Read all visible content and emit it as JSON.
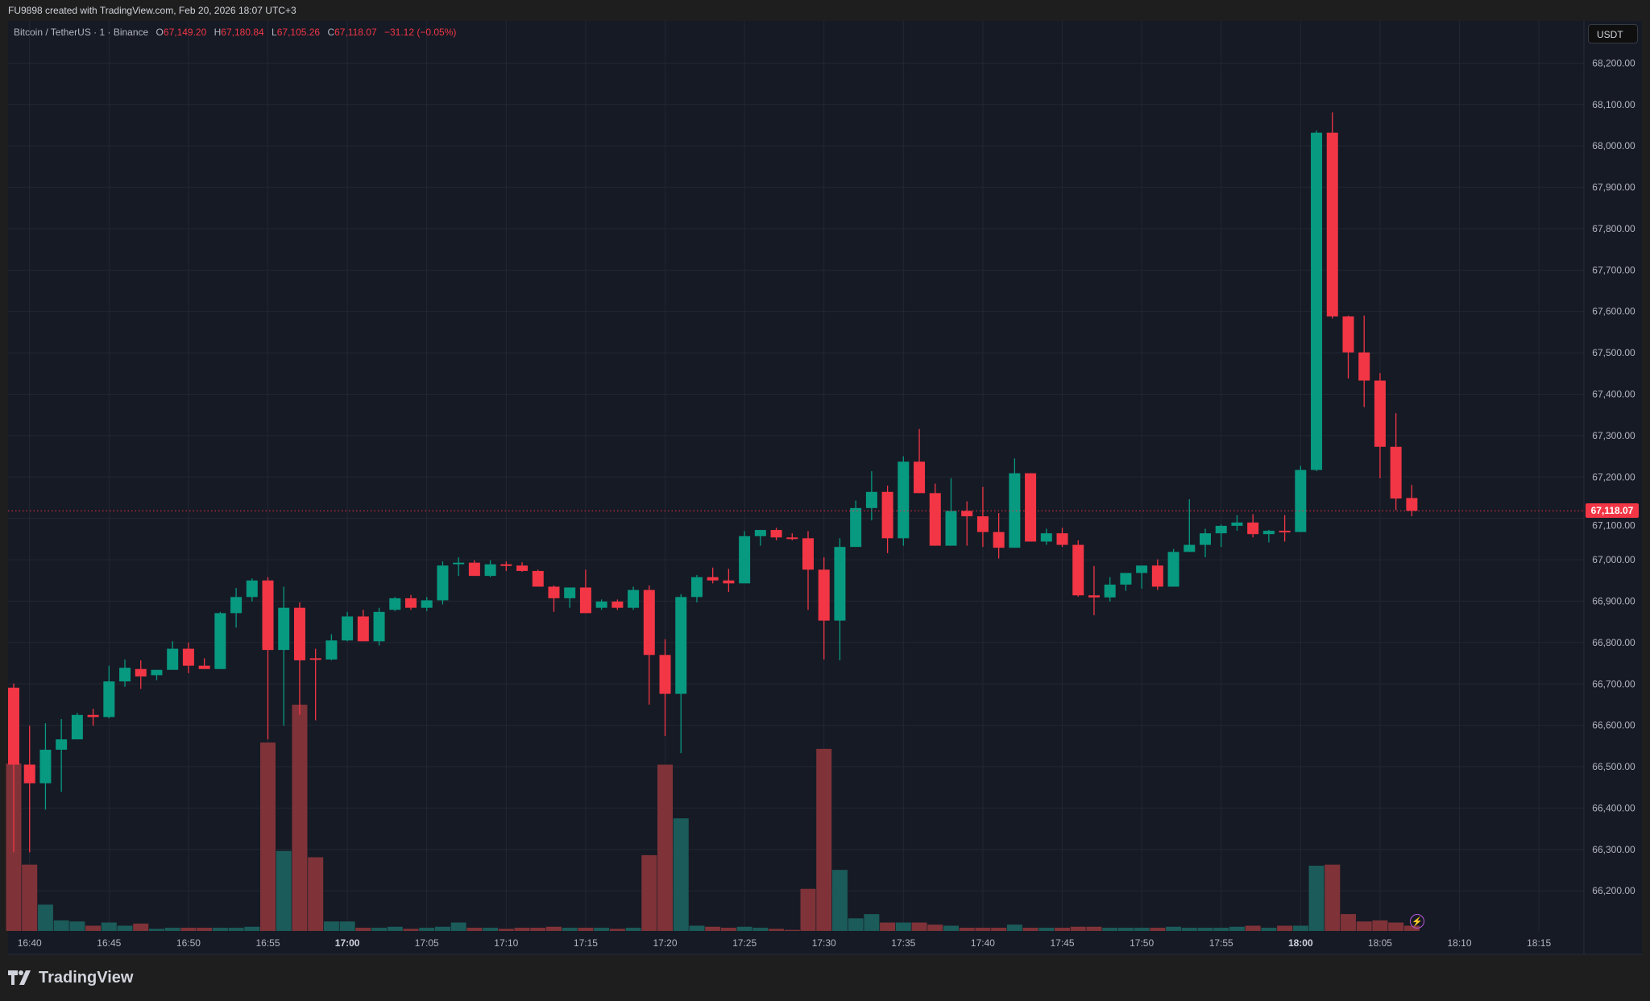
{
  "header": {
    "text": "FU9898 created with TradingView.com, Feb 20, 2026 18:07 UTC+3"
  },
  "legend": {
    "symbol": "Bitcoin / TetherUS · 1 · Binance",
    "o_label": "O",
    "o": "67,149.20",
    "h_label": "H",
    "h": "67,180.84",
    "l_label": "L",
    "l": "67,105.26",
    "c_label": "C",
    "c": "67,118.07",
    "change": "−31.12 (−0.05%)"
  },
  "currency_button": "USDT",
  "last_price_label": "67,118.07",
  "footer": {
    "brand": "TradingView"
  },
  "colors": {
    "up": "#089981",
    "down": "#f23645",
    "vol_up": "#1b5b59",
    "vol_down": "#7f3338",
    "background": "#161a25",
    "grid": "#232733"
  },
  "icons": {
    "alert": "lightning-icon",
    "logo": "tradingview-logo-icon"
  },
  "chart_data": {
    "type": "candlestick",
    "interval": "1 minute",
    "ylim": [
      66150,
      68250
    ],
    "yticks": [
      68200,
      68100,
      68000,
      67900,
      67800,
      67700,
      67600,
      67500,
      67400,
      67300,
      67200,
      67100,
      67000,
      66900,
      66800,
      66700,
      66600,
      66500,
      66400,
      66300,
      66200
    ],
    "ytick_labels": [
      "68,200.00",
      "68,100.00",
      "68,000.00",
      "67,900.00",
      "67,800.00",
      "67,700.00",
      "67,600.00",
      "67,500.00",
      "67,400.00",
      "67,300.00",
      "67,200.00",
      "67,100.00",
      "67,000.00",
      "66,900.00",
      "66,800.00",
      "66,700.00",
      "66,600.00",
      "66,500.00",
      "66,400.00",
      "66,300.00",
      "66,200.00"
    ],
    "xtick_labels": [
      "16:40",
      "16:45",
      "16:50",
      "16:55",
      "17:00",
      "17:05",
      "17:10",
      "17:15",
      "17:20",
      "17:25",
      "17:30",
      "17:35",
      "17:40",
      "17:45",
      "17:50",
      "17:55",
      "18:00",
      "18:05",
      "18:10",
      "18:15"
    ],
    "xtick_bold": [
      "17:00",
      "18:00"
    ],
    "first_candle_time": "16:39",
    "last_price": 67118.07,
    "grid": true,
    "volume_note": "relative volume, no axis shown",
    "candles_ohlcv": [
      [
        66691,
        66701,
        66293,
        66505,
        159
      ],
      [
        66505,
        66599,
        66293,
        66460,
        63
      ],
      [
        66460,
        66605,
        66396,
        66541,
        25
      ],
      [
        66541,
        66615,
        66439,
        66566,
        10
      ],
      [
        66566,
        66630,
        66566,
        66625,
        9
      ],
      [
        66625,
        66640,
        66599,
        66620,
        5
      ],
      [
        66620,
        66744,
        66617,
        66706,
        8
      ],
      [
        66706,
        66759,
        66693,
        66739,
        5
      ],
      [
        66736,
        66757,
        66688,
        66718,
        7
      ],
      [
        66721,
        66734,
        66709,
        66734,
        2
      ],
      [
        66734,
        66803,
        66734,
        66785,
        3
      ],
      [
        66785,
        66800,
        66726,
        66744,
        3
      ],
      [
        66744,
        66762,
        66736,
        66736,
        3
      ],
      [
        66736,
        66874,
        66736,
        66871,
        3
      ],
      [
        66871,
        66932,
        66836,
        66910,
        3
      ],
      [
        66910,
        66955,
        66899,
        66950,
        4
      ],
      [
        66950,
        66958,
        66566,
        66782,
        179
      ],
      [
        66782,
        66935,
        66599,
        66884,
        76
      ],
      [
        66884,
        66897,
        66625,
        66757,
        215
      ],
      [
        66762,
        66785,
        66612,
        66759,
        70
      ],
      [
        66759,
        66820,
        66757,
        66805,
        9
      ],
      [
        66805,
        66874,
        66803,
        66863,
        9
      ],
      [
        66863,
        66879,
        66803,
        66803,
        3
      ],
      [
        66803,
        66884,
        66793,
        66874,
        3
      ],
      [
        66879,
        66910,
        66876,
        66907,
        4
      ],
      [
        66907,
        66915,
        66879,
        66884,
        2
      ],
      [
        66884,
        66910,
        66876,
        66902,
        3
      ],
      [
        66902,
        66996,
        66892,
        66986,
        4
      ],
      [
        66991,
        67006,
        66961,
        66993,
        8
      ],
      [
        66993,
        66999,
        66961,
        66961,
        3
      ],
      [
        66961,
        66999,
        66958,
        66989,
        3
      ],
      [
        66989,
        66996,
        66973,
        66986,
        2
      ],
      [
        66986,
        66994,
        66971,
        66973,
        3
      ],
      [
        66973,
        66976,
        66935,
        66935,
        3
      ],
      [
        66935,
        66938,
        66874,
        66907,
        4
      ],
      [
        66907,
        66933,
        66884,
        66933,
        3
      ],
      [
        66933,
        66976,
        66871,
        66871,
        3
      ],
      [
        66884,
        66904,
        66879,
        66899,
        3
      ],
      [
        66899,
        66904,
        66879,
        66884,
        2
      ],
      [
        66884,
        66935,
        66879,
        66927,
        3
      ],
      [
        66927,
        66938,
        66650,
        66770,
        72
      ],
      [
        66770,
        66808,
        66574,
        66676,
        158
      ],
      [
        66676,
        66917,
        66533,
        66910,
        107
      ],
      [
        66910,
        66963,
        66897,
        66958,
        5
      ],
      [
        66958,
        66981,
        66943,
        66950,
        4
      ],
      [
        66950,
        66978,
        66922,
        66943,
        3
      ],
      [
        66943,
        67069,
        66945,
        67057,
        4
      ],
      [
        67057,
        67072,
        67034,
        67072,
        3
      ],
      [
        67072,
        67077,
        67047,
        67054,
        2
      ],
      [
        67054,
        67064,
        67047,
        67052,
        1
      ],
      [
        67052,
        67069,
        66879,
        66976,
        40
      ],
      [
        66976,
        67006,
        66759,
        66853,
        173
      ],
      [
        66853,
        67052,
        66757,
        67031,
        58
      ],
      [
        67031,
        67143,
        67031,
        67125,
        12
      ],
      [
        67125,
        67214,
        67095,
        67164,
        16
      ],
      [
        67164,
        67179,
        67016,
        67052,
        8
      ],
      [
        67052,
        67250,
        67034,
        67237,
        8
      ],
      [
        67237,
        67316,
        67161,
        67161,
        8
      ],
      [
        67161,
        67184,
        67034,
        67034,
        6
      ],
      [
        67034,
        67197,
        67034,
        67118,
        5
      ],
      [
        67118,
        67141,
        67034,
        67105,
        3
      ],
      [
        67105,
        67176,
        67031,
        67067,
        3
      ],
      [
        67067,
        67113,
        67003,
        67029,
        3
      ],
      [
        67029,
        67245,
        67029,
        67209,
        6
      ],
      [
        67209,
        67209,
        67044,
        67044,
        3
      ],
      [
        67044,
        67075,
        67036,
        67064,
        3
      ],
      [
        67064,
        67077,
        67031,
        67036,
        3
      ],
      [
        67036,
        67047,
        66911,
        66914,
        4
      ],
      [
        66914,
        66985,
        66866,
        66909,
        4
      ],
      [
        66909,
        66958,
        66899,
        66940,
        3
      ],
      [
        66940,
        66968,
        66925,
        66968,
        3
      ],
      [
        66968,
        66986,
        66930,
        66986,
        3
      ],
      [
        66986,
        67001,
        66927,
        66935,
        3
      ],
      [
        66935,
        67026,
        66935,
        67019,
        4
      ],
      [
        67019,
        67146,
        67019,
        67036,
        3
      ],
      [
        67036,
        67075,
        67006,
        67064,
        3
      ],
      [
        67064,
        67085,
        67031,
        67082,
        3
      ],
      [
        67082,
        67108,
        67070,
        67090,
        4
      ],
      [
        67090,
        67110,
        67054,
        67062,
        5
      ],
      [
        67062,
        67072,
        67042,
        67070,
        3
      ],
      [
        67070,
        67108,
        67044,
        67067,
        5
      ],
      [
        67067,
        67227,
        67067,
        67217,
        5
      ],
      [
        67217,
        68037,
        67214,
        68032,
        62
      ],
      [
        68032,
        68081,
        67583,
        67588,
        63
      ],
      [
        67588,
        67590,
        67438,
        67501,
        16
      ],
      [
        67501,
        67590,
        67369,
        67433,
        9
      ],
      [
        67433,
        67451,
        67197,
        67273,
        10
      ],
      [
        67273,
        67354,
        67120,
        67148,
        8
      ],
      [
        67149.2,
        67180.84,
        67105.26,
        67118.07,
        5
      ]
    ]
  }
}
